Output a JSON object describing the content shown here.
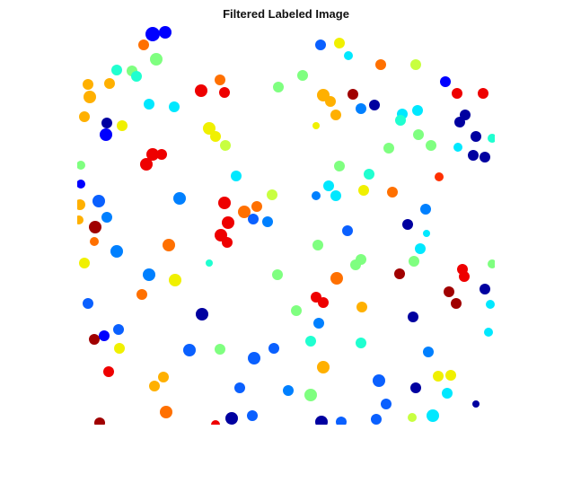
{
  "figure": {
    "title": "Filtered Labeled Image"
  },
  "colormap": "jet",
  "background_color": "#ffffff"
}
